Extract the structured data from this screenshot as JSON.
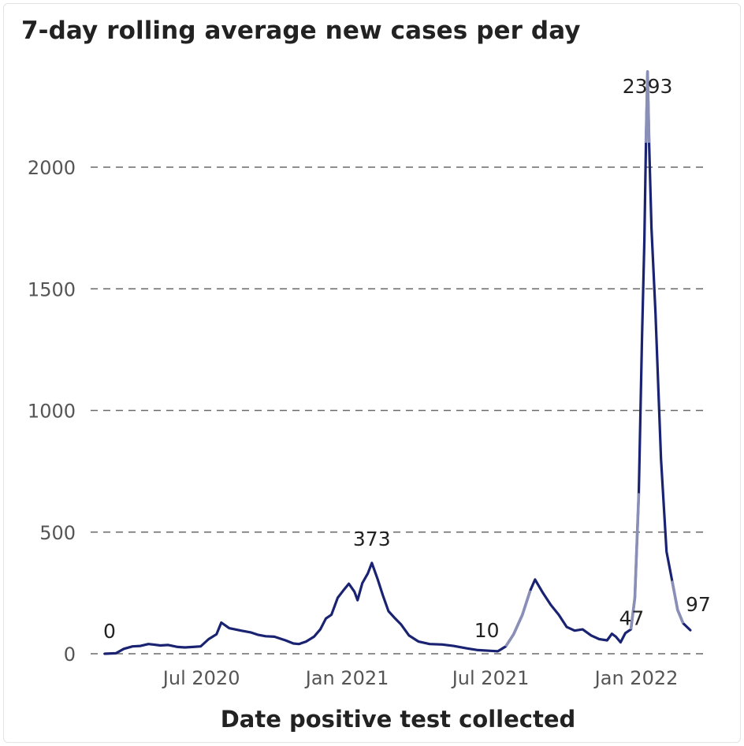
{
  "chart_data": {
    "type": "line",
    "title": "7-day rolling average new cases per day",
    "xlabel": "Date positive test collected",
    "ylabel": "",
    "ylim": [
      0,
      2393
    ],
    "yticks": [
      0,
      500,
      1000,
      1500,
      2000
    ],
    "ytick_labels": [
      "0",
      "500",
      "1000",
      "1500",
      "2000"
    ],
    "xlim": [
      "2020-03-01",
      "2022-04-01"
    ],
    "xticks": [
      {
        "date": "2020-07-01",
        "label": "Jul 2020"
      },
      {
        "date": "2021-01-01",
        "label": "Jan 2021"
      },
      {
        "date": "2021-07-01",
        "label": "Jul 2021"
      },
      {
        "date": "2022-01-01",
        "label": "Jan 2022"
      }
    ],
    "grid": "horizontal-dashed",
    "series": [
      {
        "color": "#1a2372",
        "points": [
          [
            "2020-03-01",
            0
          ],
          [
            "2020-03-15",
            2
          ],
          [
            "2020-03-25",
            20
          ],
          [
            "2020-04-05",
            30
          ],
          [
            "2020-04-15",
            32
          ],
          [
            "2020-04-25",
            40
          ],
          [
            "2020-05-01",
            38
          ],
          [
            "2020-05-10",
            34
          ],
          [
            "2020-05-20",
            36
          ],
          [
            "2020-06-01",
            28
          ],
          [
            "2020-06-10",
            26
          ],
          [
            "2020-06-20",
            28
          ],
          [
            "2020-06-30",
            30
          ],
          [
            "2020-07-10",
            60
          ],
          [
            "2020-07-20",
            80
          ],
          [
            "2020-07-26",
            128
          ],
          [
            "2020-08-05",
            105
          ],
          [
            "2020-08-20",
            95
          ],
          [
            "2020-09-01",
            88
          ],
          [
            "2020-09-10",
            78
          ],
          [
            "2020-09-20",
            72
          ],
          [
            "2020-10-01",
            70
          ],
          [
            "2020-10-15",
            55
          ],
          [
            "2020-10-25",
            42
          ],
          [
            "2020-11-01",
            40
          ],
          [
            "2020-11-10",
            50
          ],
          [
            "2020-11-20",
            70
          ],
          [
            "2020-11-28",
            100
          ],
          [
            "2020-12-05",
            145
          ],
          [
            "2020-12-12",
            160
          ],
          [
            "2020-12-20",
            230
          ],
          [
            "2020-12-27",
            260
          ],
          [
            "2021-01-03",
            288
          ],
          [
            "2021-01-10",
            255
          ],
          [
            "2021-01-14",
            220
          ],
          [
            "2021-01-20",
            290
          ],
          [
            "2021-01-27",
            330
          ],
          [
            "2021-02-01",
            373
          ],
          [
            "2021-02-08",
            310
          ],
          [
            "2021-02-15",
            240
          ],
          [
            "2021-02-22",
            175
          ],
          [
            "2021-03-01",
            150
          ],
          [
            "2021-03-10",
            120
          ],
          [
            "2021-03-20",
            75
          ],
          [
            "2021-04-01",
            50
          ],
          [
            "2021-04-15",
            40
          ],
          [
            "2021-05-01",
            38
          ],
          [
            "2021-05-15",
            32
          ],
          [
            "2021-06-01",
            22
          ],
          [
            "2021-06-15",
            15
          ],
          [
            "2021-07-01",
            12
          ],
          [
            "2021-07-10",
            10
          ],
          [
            "2021-07-20",
            30
          ],
          [
            "2021-07-30",
            80
          ],
          [
            "2021-08-10",
            160
          ],
          [
            "2021-08-20",
            260
          ],
          [
            "2021-08-26",
            305
          ],
          [
            "2021-09-05",
            250
          ],
          [
            "2021-09-15",
            200
          ],
          [
            "2021-09-25",
            160
          ],
          [
            "2021-10-05",
            110
          ],
          [
            "2021-10-15",
            95
          ],
          [
            "2021-10-25",
            100
          ],
          [
            "2021-11-05",
            75
          ],
          [
            "2021-11-15",
            60
          ],
          [
            "2021-11-25",
            55
          ],
          [
            "2021-12-01",
            82
          ],
          [
            "2021-12-06",
            70
          ],
          [
            "2021-12-12",
            47
          ],
          [
            "2021-12-18",
            85
          ],
          [
            "2021-12-25",
            100
          ],
          [
            "2021-12-30",
            230
          ],
          [
            "2022-01-04",
            660
          ],
          [
            "2022-01-08",
            1300
          ],
          [
            "2022-01-11",
            1700
          ],
          [
            "2022-01-13",
            2100
          ],
          [
            "2022-01-15",
            2393
          ],
          [
            "2022-01-17",
            2100
          ],
          [
            "2022-01-20",
            1750
          ],
          [
            "2022-01-25",
            1400
          ],
          [
            "2022-02-01",
            800
          ],
          [
            "2022-02-08",
            420
          ],
          [
            "2022-02-15",
            300
          ],
          [
            "2022-02-22",
            180
          ],
          [
            "2022-03-01",
            125
          ],
          [
            "2022-03-10",
            97
          ]
        ]
      }
    ],
    "highlight_ranges": [
      {
        "start": "2021-07-20",
        "end": "2021-08-20",
        "color": "#8a8fb8"
      },
      {
        "start": "2021-12-25",
        "end": "2022-01-04",
        "color": "#8a8fb8"
      },
      {
        "start": "2022-01-13",
        "end": "2022-01-17",
        "color": "#8a8fb8"
      },
      {
        "start": "2022-02-15",
        "end": "2022-03-01",
        "color": "#8a8fb8"
      }
    ],
    "annotations": [
      {
        "date": "2020-03-01",
        "value": 0,
        "label": "0"
      },
      {
        "date": "2021-02-01",
        "value": 373,
        "label": "373"
      },
      {
        "date": "2021-07-10",
        "value": 10,
        "label": "10"
      },
      {
        "date": "2021-12-12",
        "value": 47,
        "label": "47"
      },
      {
        "date": "2022-01-15",
        "value": 2393,
        "label": "2393"
      },
      {
        "date": "2022-03-10",
        "value": 97,
        "label": "97"
      }
    ]
  }
}
